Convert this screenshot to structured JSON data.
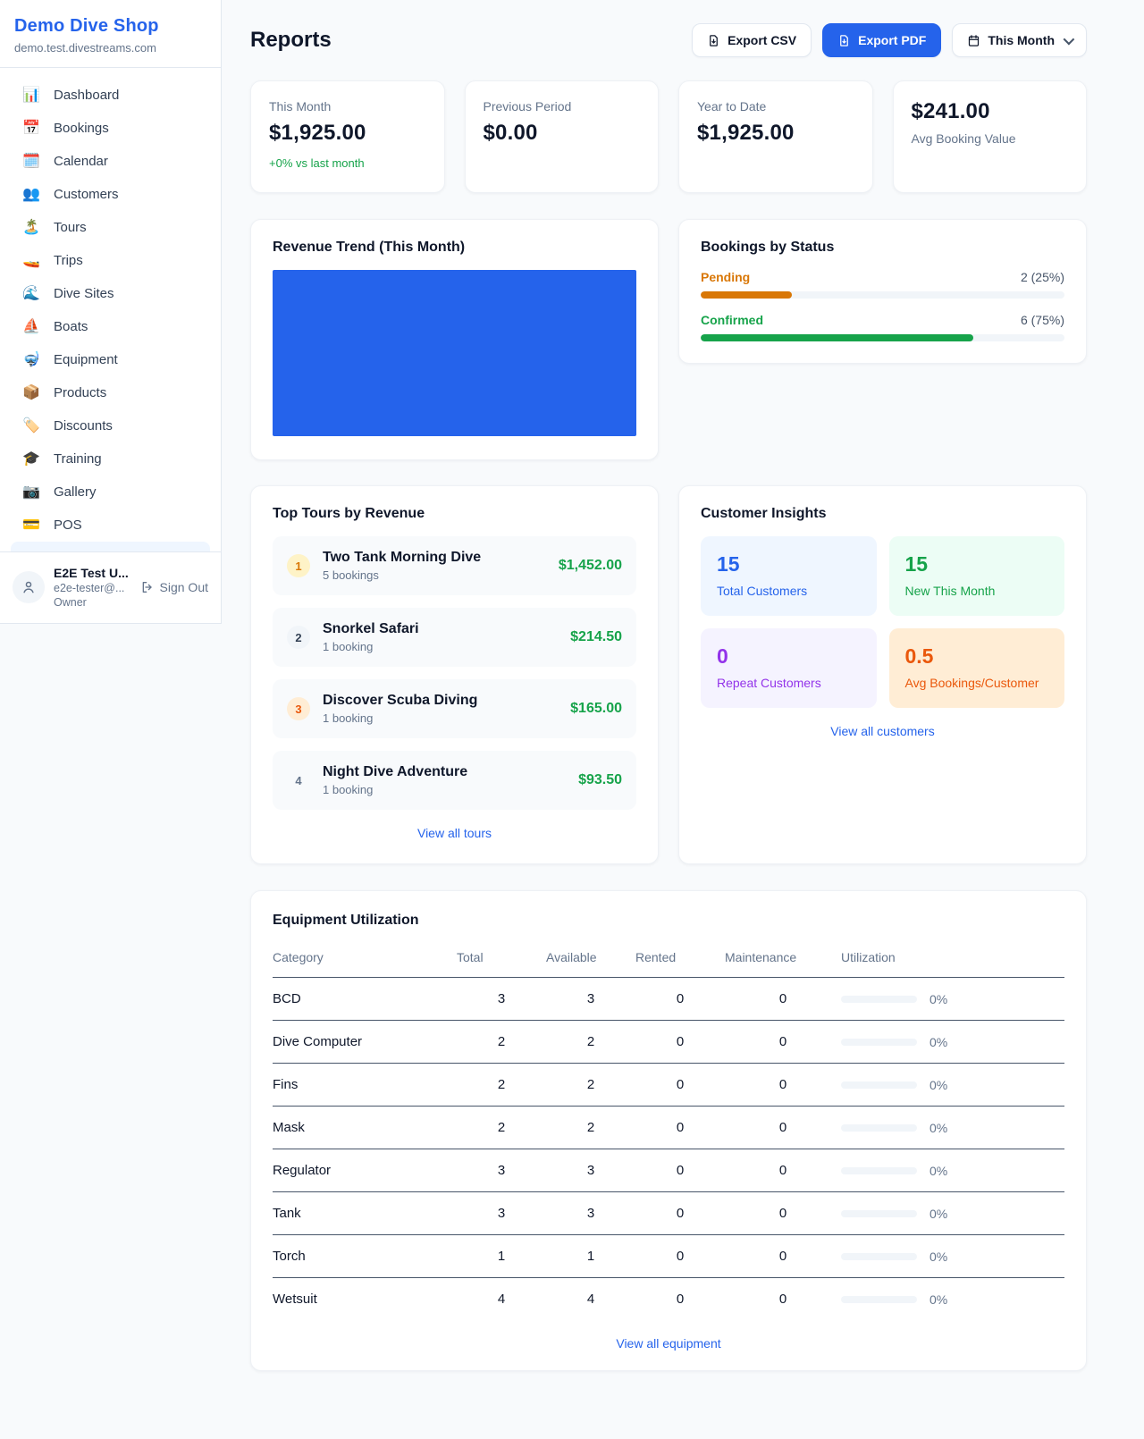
{
  "colors": {
    "accent_blue": "#2563eb",
    "success_green": "#16a34a",
    "pending_amber": "#d97706",
    "orange": "#ea580c",
    "purple": "#9333ea",
    "chart_fill_blue": "#2563eb"
  },
  "sidebar": {
    "brand": {
      "name": "Demo Dive Shop",
      "domain": "demo.test.divestreams.com"
    },
    "nav": [
      {
        "icon": "📊",
        "label": "Dashboard"
      },
      {
        "icon": "📅",
        "label": "Bookings"
      },
      {
        "icon": "🗓️",
        "label": "Calendar"
      },
      {
        "icon": "👥",
        "label": "Customers"
      },
      {
        "icon": "🏝️",
        "label": "Tours"
      },
      {
        "icon": "🚤",
        "label": "Trips"
      },
      {
        "icon": "🌊",
        "label": "Dive Sites"
      },
      {
        "icon": "⛵",
        "label": "Boats"
      },
      {
        "icon": "🤿",
        "label": "Equipment"
      },
      {
        "icon": "📦",
        "label": "Products"
      },
      {
        "icon": "🏷️",
        "label": "Discounts"
      },
      {
        "icon": "🎓",
        "label": "Training"
      },
      {
        "icon": "📷",
        "label": "Gallery"
      },
      {
        "icon": "💳",
        "label": "POS"
      }
    ],
    "user": {
      "name": "E2E Test U...",
      "email": "e2e-tester@...",
      "role": "Owner",
      "sign_out": "Sign Out"
    }
  },
  "header": {
    "title": "Reports",
    "export_csv": "Export CSV",
    "export_pdf": "Export PDF",
    "period": "This Month"
  },
  "stats": {
    "this_month": {
      "label": "This Month",
      "value": "$1,925.00",
      "delta": "+0% vs last month"
    },
    "previous_period": {
      "label": "Previous Period",
      "value": "$0.00"
    },
    "year_to_date": {
      "label": "Year to Date",
      "value": "$1,925.00"
    },
    "avg_booking": {
      "value": "$241.00",
      "label": "Avg Booking Value"
    }
  },
  "revenue_trend": {
    "title": "Revenue Trend (This Month)"
  },
  "bookings_by_status": {
    "title": "Bookings by Status",
    "rows": [
      {
        "label": "Pending",
        "count": "2 (25%)",
        "pct": 25
      },
      {
        "label": "Confirmed",
        "count": "6 (75%)",
        "pct": 75
      }
    ]
  },
  "top_tours": {
    "title": "Top Tours by Revenue",
    "items": [
      {
        "rank": "1",
        "name": "Two Tank Morning Dive",
        "bookings": "5 bookings",
        "revenue": "$1,452.00"
      },
      {
        "rank": "2",
        "name": "Snorkel Safari",
        "bookings": "1 booking",
        "revenue": "$214.50"
      },
      {
        "rank": "3",
        "name": "Discover Scuba Diving",
        "bookings": "1 booking",
        "revenue": "$165.00"
      },
      {
        "rank": "4",
        "name": "Night Dive Adventure",
        "bookings": "1 booking",
        "revenue": "$93.50"
      }
    ],
    "view_all": "View all tours"
  },
  "customer_insights": {
    "title": "Customer Insights",
    "tiles": [
      {
        "value": "15",
        "label": "Total Customers"
      },
      {
        "value": "15",
        "label": "New This Month"
      },
      {
        "value": "0",
        "label": "Repeat Customers"
      },
      {
        "value": "0.5",
        "label": "Avg Bookings/Customer"
      }
    ],
    "view_all": "View all customers"
  },
  "equipment": {
    "title": "Equipment Utilization",
    "columns": [
      "Category",
      "Total",
      "Available",
      "Rented",
      "Maintenance",
      "Utilization"
    ],
    "rows": [
      {
        "category": "BCD",
        "total": "3",
        "available": "3",
        "rented": "0",
        "maintenance": "0",
        "utilization": "0%",
        "pct": 0
      },
      {
        "category": "Dive Computer",
        "total": "2",
        "available": "2",
        "rented": "0",
        "maintenance": "0",
        "utilization": "0%",
        "pct": 0
      },
      {
        "category": "Fins",
        "total": "2",
        "available": "2",
        "rented": "0",
        "maintenance": "0",
        "utilization": "0%",
        "pct": 0
      },
      {
        "category": "Mask",
        "total": "2",
        "available": "2",
        "rented": "0",
        "maintenance": "0",
        "utilization": "0%",
        "pct": 0
      },
      {
        "category": "Regulator",
        "total": "3",
        "available": "3",
        "rented": "0",
        "maintenance": "0",
        "utilization": "0%",
        "pct": 0
      },
      {
        "category": "Tank",
        "total": "3",
        "available": "3",
        "rented": "0",
        "maintenance": "0",
        "utilization": "0%",
        "pct": 0
      },
      {
        "category": "Torch",
        "total": "1",
        "available": "1",
        "rented": "0",
        "maintenance": "0",
        "utilization": "0%",
        "pct": 0
      },
      {
        "category": "Wetsuit",
        "total": "4",
        "available": "4",
        "rented": "0",
        "maintenance": "0",
        "utilization": "0%",
        "pct": 0
      }
    ],
    "view_all": "View all equipment"
  },
  "chart_data": [
    {
      "type": "bar",
      "title": "Bookings by Status",
      "orientation": "horizontal",
      "categories": [
        "Pending",
        "Confirmed"
      ],
      "values": [
        2,
        6
      ],
      "percentages": [
        25,
        75
      ]
    },
    {
      "type": "area",
      "title": "Revenue Trend (This Month)",
      "note": "plot area rendered as a single solid blue filled block; no axis ticks, gridlines or labels visible"
    }
  ]
}
